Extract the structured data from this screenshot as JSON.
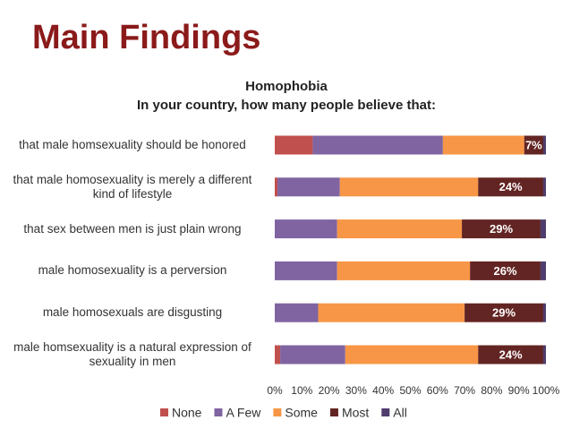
{
  "header": {
    "title": "Main Findings"
  },
  "chart_data": {
    "type": "stacked-barh",
    "title": "Homophobia",
    "subtitle": "In your country, how many people believe that:",
    "categories": [
      "that male homsexuality should be honored",
      "that male homosexuality is merely a different kind of lifestyle",
      "that sex between men is just plain wrong",
      "male homosexuality is a perversion",
      "male homosexuals are disgusting",
      "male homsexuality is a natural expression of sexuality in men"
    ],
    "series": [
      {
        "name": "None",
        "color": "#c0504d",
        "values": [
          14,
          1,
          0,
          0,
          0,
          2
        ]
      },
      {
        "name": "A Few",
        "color": "#8064a2",
        "values": [
          48,
          23,
          23,
          23,
          16,
          24
        ]
      },
      {
        "name": "Some",
        "color": "#f79646",
        "values": [
          30,
          51,
          46,
          49,
          54,
          49
        ]
      },
      {
        "name": "Most",
        "color": "#632523",
        "values": [
          7,
          24,
          29,
          26,
          29,
          24
        ],
        "value_labels": [
          "7%",
          "24%",
          "29%",
          "26%",
          "29%",
          "24%"
        ]
      },
      {
        "name": "All",
        "color": "#4f3d6e",
        "values": [
          1,
          1,
          2,
          2,
          1,
          1
        ]
      }
    ],
    "xlim": [
      0,
      100
    ],
    "xticks": [
      {
        "value": 0,
        "label": "0%"
      },
      {
        "value": 10,
        "label": "10%"
      },
      {
        "value": 20,
        "label": "20%"
      },
      {
        "value": 30,
        "label": "30%"
      },
      {
        "value": 40,
        "label": "40%"
      },
      {
        "value": 50,
        "label": "50%"
      },
      {
        "value": 60,
        "label": "60%"
      },
      {
        "value": 70,
        "label": "70%"
      },
      {
        "value": 80,
        "label": "80%"
      },
      {
        "value": 90,
        "label": "90%"
      },
      {
        "value": 100,
        "label": "100%"
      }
    ],
    "legend": "bottom"
  }
}
